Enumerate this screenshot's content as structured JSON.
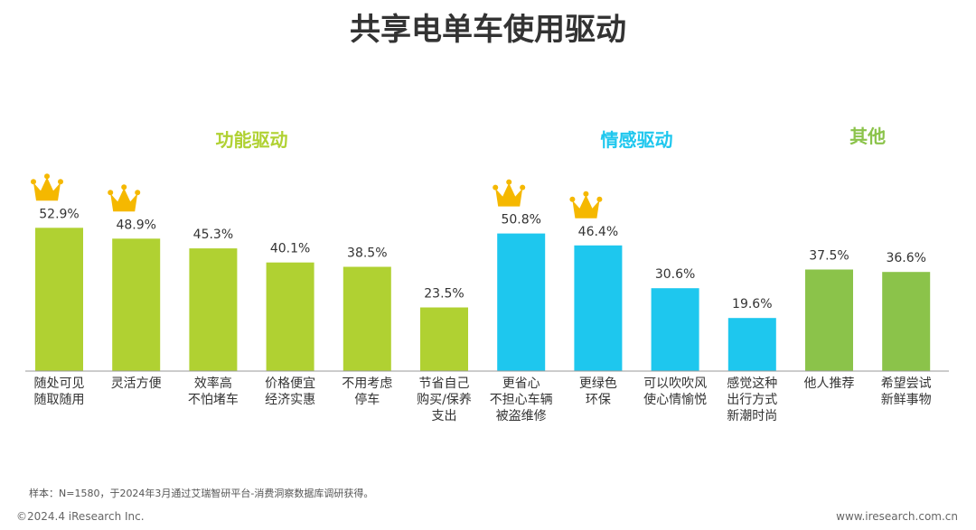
{
  "chart_data": {
    "type": "bar",
    "title": "共享电单车使用驱动",
    "unit": "%",
    "groups": [
      {
        "name": "功能驱动",
        "color": "#b0d132"
      },
      {
        "name": "情感驱动",
        "color": "#1ec7ee"
      },
      {
        "name": "其他",
        "color": "#8bc34a"
      }
    ],
    "categories": [
      [
        "随处可见",
        "随取随用"
      ],
      [
        "灵活方便"
      ],
      [
        "效率高",
        "不怕堵车"
      ],
      [
        "价格便宜",
        "经济实惠"
      ],
      [
        "不用考虑",
        "停车"
      ],
      [
        "节省自己",
        "购买/保养",
        "支出"
      ],
      [
        "更省心",
        "不担心车辆",
        "被盗维修"
      ],
      [
        "更绿色",
        "环保"
      ],
      [
        "可以吹吹风",
        "使心情愉悦"
      ],
      [
        "感觉这种",
        "出行方式",
        "新潮时尚"
      ],
      [
        "他人推荐"
      ],
      [
        "希望尝试",
        "新鲜事物"
      ]
    ],
    "values": [
      52.9,
      48.9,
      45.3,
      40.1,
      38.5,
      23.5,
      50.8,
      46.4,
      30.6,
      19.6,
      37.5,
      36.6
    ],
    "value_labels": [
      "52.9%",
      "48.9%",
      "45.3%",
      "40.1%",
      "38.5%",
      "23.5%",
      "50.8%",
      "46.4%",
      "30.6%",
      "19.6%",
      "37.5%",
      "36.6%"
    ],
    "group_index": [
      0,
      0,
      0,
      0,
      0,
      0,
      1,
      1,
      1,
      1,
      2,
      2
    ],
    "crowned": [
      0,
      1,
      6,
      7
    ],
    "ylim": [
      0,
      60
    ]
  },
  "colors": {
    "crown": "#f5b800",
    "axis": "#999999",
    "title": "#333333",
    "text": "#333333"
  },
  "note": "样本：N=1580，于2024年3月通过艾瑞智研平台-消费洞察数据库调研获得。",
  "footer": {
    "left": "©2024.4 iResearch Inc.",
    "right": "www.iresearch.com.cn"
  }
}
